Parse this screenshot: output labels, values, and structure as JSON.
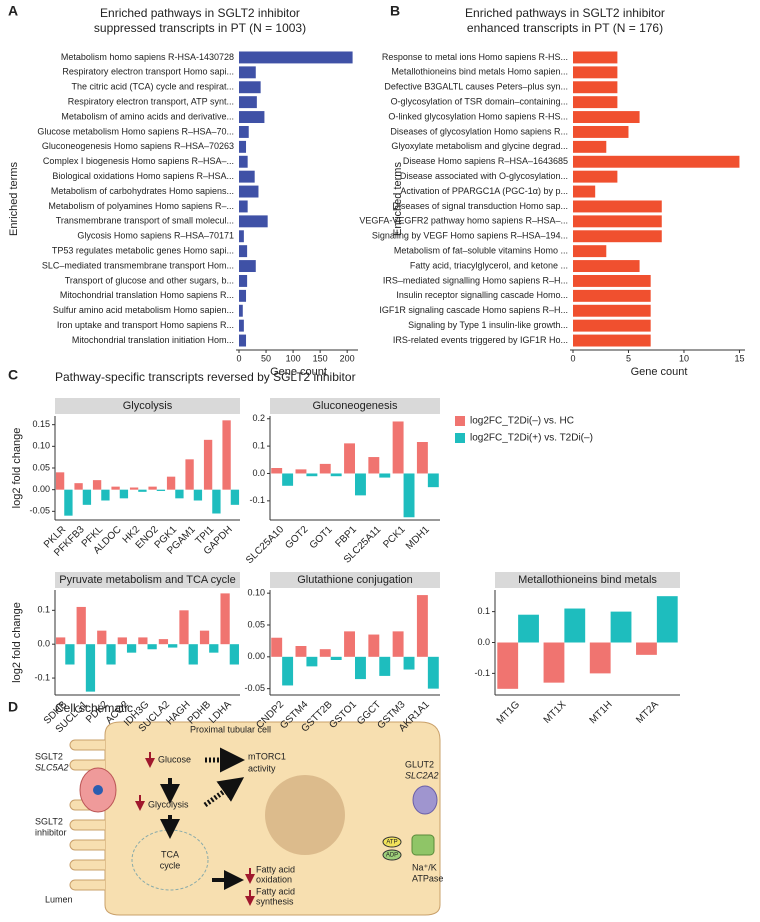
{
  "panel_labels": [
    "A",
    "B",
    "C",
    "D"
  ],
  "section_c_title": "Pathway-specific transcripts reversed by SGLT2 inhibitor",
  "schematic": {
    "title": "Cell schematic",
    "cell": "Proximal tubular cell",
    "sglt2": "SGLT2",
    "slc5a2": "SLC5A2",
    "inhibitor_1": "SGLT2",
    "inhibitor_2": "inhibitor",
    "glucose": "Glucose",
    "glycolysis": "Glycolysis",
    "mtorc1_1": "mTORC1",
    "mtorc1_2": "activity",
    "glut2": "GLUT2",
    "slc2a2": "SLC2A2",
    "atp": "ATP",
    "adp": "ADP",
    "nak_1": "Na⁺/K",
    "nak_2": "ATPase",
    "tca_1": "TCA",
    "tca_2": "cycle",
    "fao_1": "Fatty acid",
    "fao_2": "oxidation",
    "fas_1": "Fatty acid",
    "fas_2": "synthesis",
    "lumen": "Lumen"
  },
  "chart_data": [
    {
      "type": "barh",
      "title": [
        "Enriched pathways in SGLT2 inhibitor",
        "suppressed transcripts in PT (N = 1003)"
      ],
      "xlabel": "Gene count",
      "ylabel": "Enriched terms",
      "color": "#3f51a6",
      "categories": [
        "Metabolism homo sapiens R-HSA-1430728",
        "Respiratory electron transport Homo sapi...",
        "The citric acid (TCA) cycle and respirat...",
        "Respiratory electron transport, ATP synt...",
        "Metabolism of amino acids and derivative...",
        "Glucose metabolism Homo sapiens R–HSA–70...",
        "Gluconeogenesis Homo sapiens R–HSA–70263",
        "Complex I biogenesis Homo sapiens R–HSA–...",
        "Biological oxidations Homo sapiens R–HSA...",
        "Metabolism of carbohydrates Homo sapiens...",
        "Metabolism of polyamines Homo sapiens R–...",
        "Transmembrane transport of small molecul...",
        "Glycosis Homo sapiens R–HSA–70171",
        "TP53 regulates metabolic genes Homo sapi...",
        "SLC–mediated transmembrane transport Hom...",
        "Transport of glucose and other sugars, b...",
        "Mitochondrial translation Homo sapiens R...",
        "Sulfur amino acid metabolism Homo sapien...",
        "Iron uptake and transport Homo sapiens R...",
        "Mitochondrial translation initiation Hom..."
      ],
      "values": [
        210,
        31,
        40,
        33,
        47,
        18,
        13,
        16,
        29,
        36,
        16,
        53,
        9,
        15,
        31,
        15,
        13,
        7,
        9,
        13
      ],
      "xlim": [
        0,
        220
      ],
      "xticks": [
        0,
        50,
        100,
        150,
        200
      ]
    },
    {
      "type": "barh",
      "title": [
        "Enriched pathways in SGLT2 inhibitor",
        "enhanced transcripts in PT (N = 176)"
      ],
      "xlabel": "Gene count",
      "ylabel": "Enriched terms",
      "color": "#f0502f",
      "categories": [
        "Response to metal ions Homo sapiens R-HS...",
        "Metallothioneins bind metals Homo sapien...",
        "Defective B3GALTL causes Peters–plus syn...",
        "O-glycosylation of TSR domain–containing...",
        "O-linked glycosylation Homo sapiens R-HS...",
        "Diseases of glycosylation Homo sapiens R...",
        "Glyoxylate metabolism and glycine degrad...",
        "Disease Homo sapiens R–HSA–1643685",
        "Disease associated with O-glycosylation...",
        "Activation of PPARGC1A (PGC-1α) by p...",
        "Diseases of signal transduction Homo sap...",
        "VEGFA-VEGFR2 pathway homo sapiens R–HSA–...",
        "Signaling by VEGF Homo sapiens R–HSA–194...",
        "Metabolism of fat–soluble vitamins Homo ...",
        "Fatty acid, triacylglycerol, and ketone ...",
        "IRS–mediated signalling Homo sapiens R–H...",
        "Insulin receptor signalling cascade Homo...",
        "IGF1R signaling cascade Homo sapiens R–H...",
        "Signaling by Type 1 insulin-like growth...",
        "IRS-related events triggered by IGF1R Ho..."
      ],
      "values": [
        4,
        4,
        4,
        4,
        6,
        5,
        3,
        15,
        4,
        2,
        8,
        8,
        8,
        3,
        6,
        7,
        7,
        7,
        7,
        7
      ],
      "xlim": [
        0,
        15.5
      ],
      "xticks": [
        0,
        5,
        10,
        15
      ]
    },
    {
      "type": "bar",
      "title": "Glycolysis",
      "ylabel": "log2 fold change",
      "categories": [
        "PKLR",
        "PFKFB3",
        "PFKL",
        "ALDOC",
        "HK2",
        "ENO2",
        "PGK1",
        "PGAM1",
        "TPI1",
        "GAPDH"
      ],
      "series": [
        {
          "name": "log2FC_T2Di(–) vs. HC",
          "color": "#f07470",
          "values": [
            0.04,
            0.015,
            0.022,
            0.007,
            0.005,
            0.007,
            0.03,
            0.07,
            0.115,
            0.16
          ]
        },
        {
          "name": "log2FC_T2Di(+) vs. T2Di(–)",
          "color": "#1ebdbe",
          "values": [
            -0.06,
            -0.035,
            -0.025,
            -0.02,
            -0.005,
            -0.003,
            -0.02,
            -0.025,
            -0.055,
            -0.035
          ]
        }
      ],
      "ylim": [
        -0.07,
        0.17
      ],
      "yticks": [
        -0.05,
        {
          "value": 0,
          "label": "0.00"
        },
        0.05,
        {
          "value": 0.1,
          "label": "0.10"
        },
        0.15
      ]
    },
    {
      "type": "bar",
      "title": "Gluconeogenesis",
      "categories": [
        "SLC25A10",
        "GOT2",
        "GOT1",
        "FBP1",
        "SLC25A11",
        "PCK1",
        "MDH1"
      ],
      "series": [
        {
          "color": "#f07470",
          "values": [
            0.02,
            0.015,
            0.035,
            0.11,
            0.06,
            0.19,
            0.115
          ]
        },
        {
          "color": "#1ebdbe",
          "values": [
            -0.045,
            -0.01,
            -0.01,
            -0.08,
            -0.015,
            -0.16,
            -0.05
          ]
        }
      ],
      "ylim": [
        -0.17,
        0.21
      ],
      "yticks": [
        -0.1,
        {
          "value": 0,
          "label": "0.0"
        },
        0.1,
        0.2
      ]
    },
    {
      "type": "bar",
      "title": "Pyruvate metabolism and TCA cycle",
      "ylabel": "log2 fold change",
      "categories": [
        "SDHB",
        "SUCLG1",
        "PDK2",
        "ACO2",
        "IDH3G",
        "SUCLA2",
        "HAGH",
        "PDHB",
        "LDHA"
      ],
      "series": [
        {
          "color": "#f07470",
          "values": [
            0.02,
            0.11,
            0.04,
            0.02,
            0.02,
            0.015,
            0.1,
            0.04,
            0.15
          ]
        },
        {
          "color": "#1ebdbe",
          "values": [
            -0.06,
            -0.14,
            -0.06,
            -0.025,
            -0.015,
            -0.01,
            -0.06,
            -0.025,
            -0.06
          ]
        }
      ],
      "ylim": [
        -0.15,
        0.16
      ],
      "yticks": [
        -0.1,
        {
          "value": 0,
          "label": "0.0"
        },
        0.1
      ]
    },
    {
      "type": "bar",
      "title": "Glutathione conjugation",
      "categories": [
        "CNDP2",
        "GSTM4",
        "GSTT2B",
        "GSTO1",
        "GGCT",
        "GSTM3",
        "AKR1A1"
      ],
      "series": [
        {
          "color": "#f07470",
          "values": [
            0.03,
            0.017,
            0.012,
            0.04,
            0.035,
            0.04,
            0.097
          ]
        },
        {
          "color": "#1ebdbe",
          "values": [
            -0.045,
            -0.015,
            -0.005,
            -0.035,
            -0.03,
            -0.02,
            -0.05
          ]
        }
      ],
      "ylim": [
        -0.06,
        0.105
      ],
      "yticks": [
        -0.05,
        {
          "value": 0,
          "label": "0.00"
        },
        0.05,
        {
          "value": 0.1,
          "label": "0.10"
        }
      ]
    },
    {
      "type": "bar",
      "title": "Metallothioneins bind metals",
      "categories": [
        "MT1G",
        "MT1X",
        "MT1H",
        "MT2A"
      ],
      "series": [
        {
          "color": "#f07470",
          "values": [
            -0.15,
            -0.13,
            -0.1,
            -0.04
          ]
        },
        {
          "color": "#1ebdbe",
          "values": [
            0.09,
            0.11,
            0.1,
            0.15
          ]
        }
      ],
      "ylim": [
        -0.17,
        0.17
      ],
      "yticks": [
        -0.1,
        {
          "value": 0,
          "label": "0.0"
        },
        0.1
      ]
    }
  ]
}
